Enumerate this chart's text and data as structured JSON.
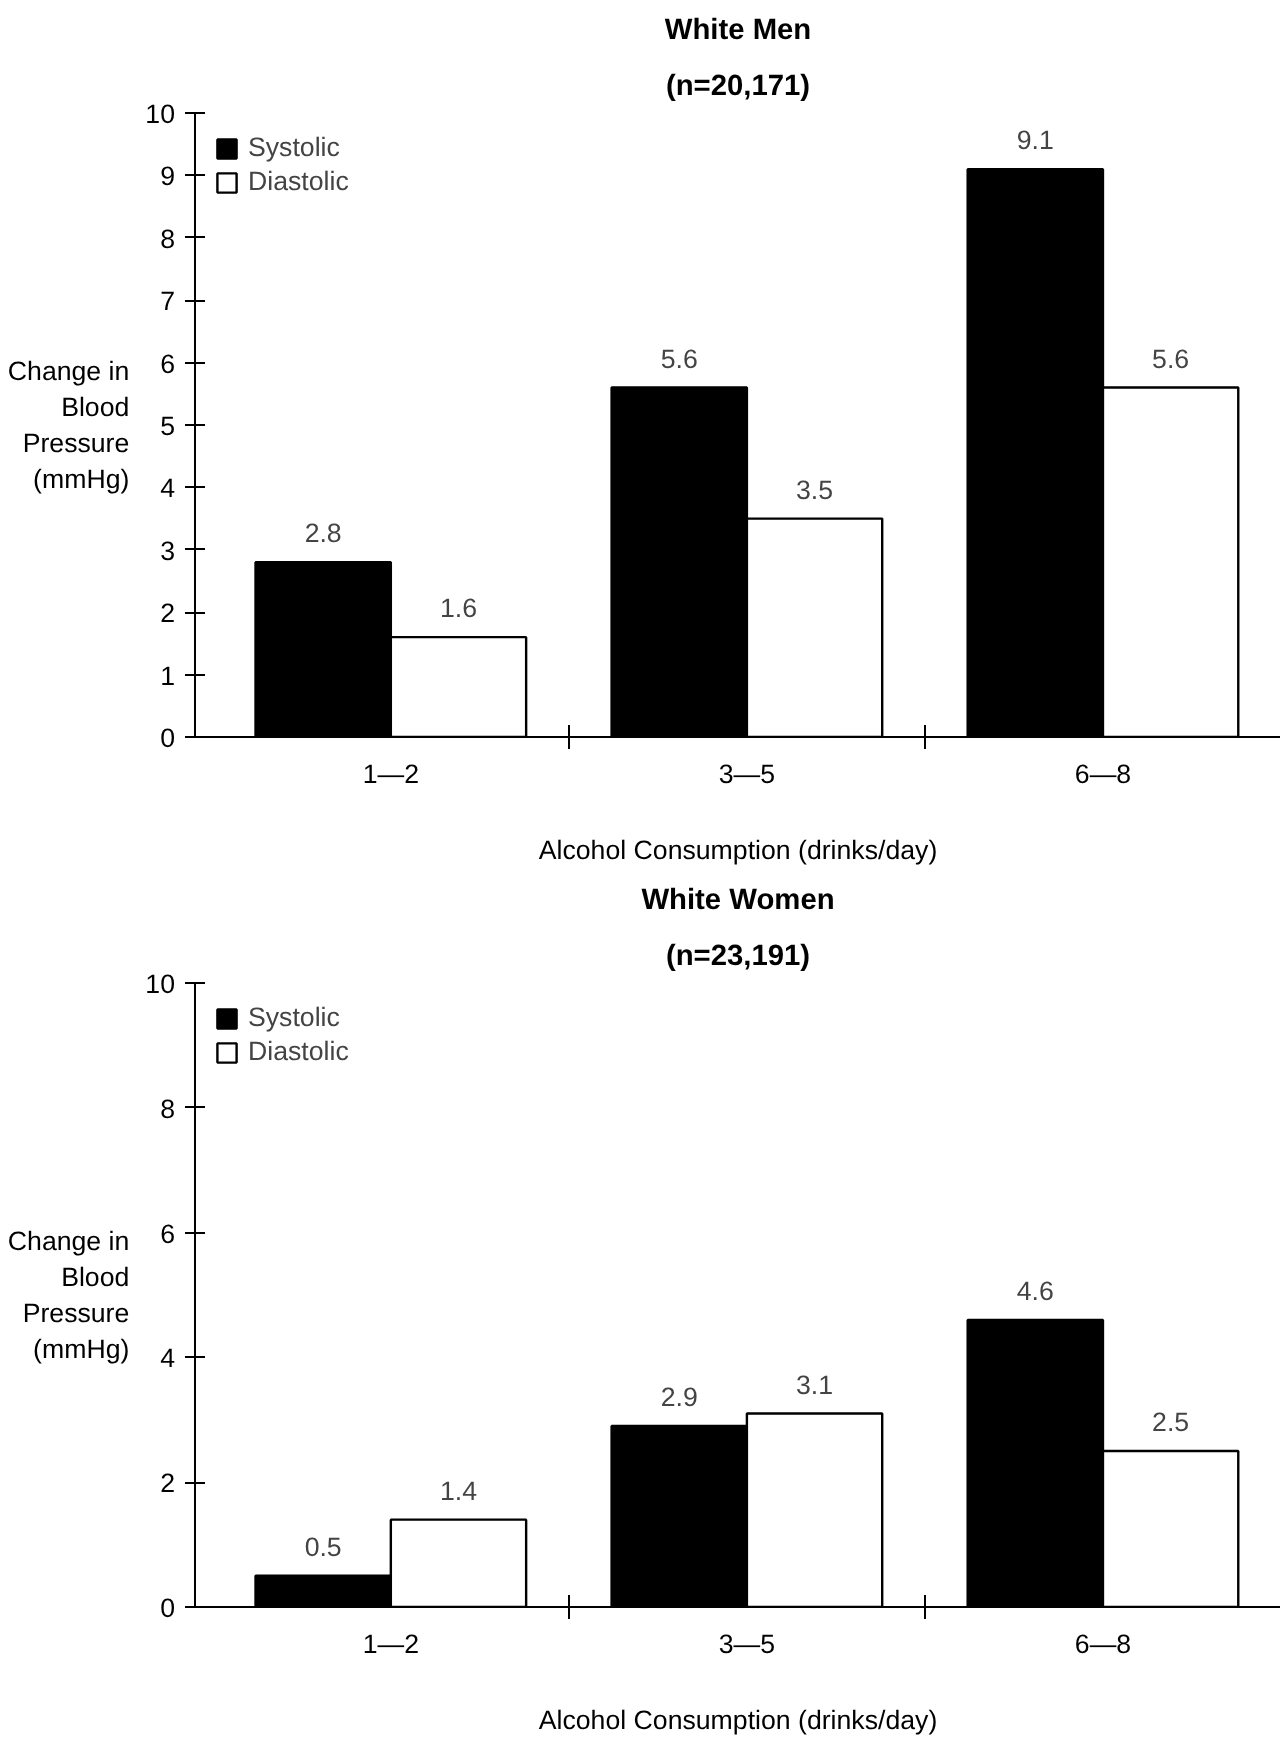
{
  "chart_data": [
    {
      "type": "bar",
      "title": "White Men",
      "subtitle": "(n=20,171)",
      "xlabel": "Alcohol Consumption (drinks/day)",
      "ylabel": "Change in Blood Pressure (mmHg)",
      "categories": [
        "1—2",
        "3—5",
        "6—8"
      ],
      "series": [
        {
          "name": "Systolic",
          "color": "#000000",
          "values": [
            2.8,
            5.6,
            9.1
          ]
        },
        {
          "name": "Diastolic",
          "color": "#ffffff",
          "values": [
            1.6,
            3.5,
            5.6
          ]
        }
      ],
      "ylim": [
        0,
        10
      ],
      "yticks": [
        0,
        1,
        2,
        3,
        4,
        5,
        6,
        7,
        8,
        9,
        10
      ],
      "data_labels": true,
      "legend": "top left",
      "grid": false
    },
    {
      "type": "bar",
      "title": "White Women",
      "subtitle": "(n=23,191)",
      "xlabel": "Alcohol Consumption (drinks/day)",
      "ylabel": "Change in Blood Pressure (mmHg)",
      "categories": [
        "1—2",
        "3—5",
        "6—8"
      ],
      "series": [
        {
          "name": "Systolic",
          "color": "#000000",
          "values": [
            0.5,
            2.9,
            4.6
          ]
        },
        {
          "name": "Diastolic",
          "color": "#ffffff",
          "values": [
            1.4,
            3.1,
            2.5
          ]
        }
      ],
      "ylim": [
        0,
        10
      ],
      "yticks": [
        0,
        2,
        4,
        6,
        8,
        10
      ],
      "data_labels": true,
      "legend": "top left",
      "grid": false
    }
  ]
}
